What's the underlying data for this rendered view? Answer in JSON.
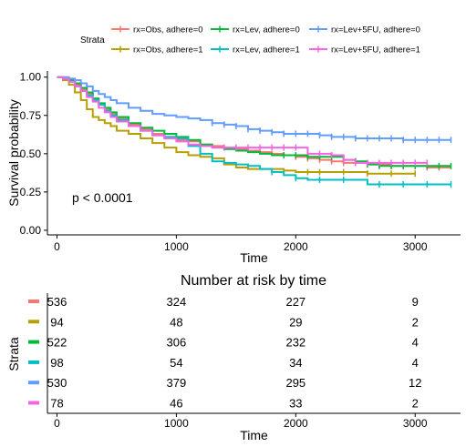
{
  "chart_data": [
    {
      "type": "line",
      "subtype": "kaplan-meier",
      "title": "",
      "xlabel": "Time",
      "ylabel": "Survival probability",
      "xlim": [
        -80,
        3380
      ],
      "ylim": [
        -0.03,
        1.04
      ],
      "xticks": [
        "0",
        "1000",
        "2000",
        "3000"
      ],
      "xtick_values": [
        0,
        1000,
        2000,
        3000
      ],
      "yticks": [
        "0.00",
        "0.25",
        "0.50",
        "0.75",
        "1.00"
      ],
      "ytick_values": [
        0,
        0.25,
        0.5,
        0.75,
        1.0
      ],
      "grid": false,
      "annotation": "p < 0.0001",
      "legend": {
        "title": "Strata",
        "position": "top",
        "entries": [
          "rx=Obs, adhere=0",
          "rx=Lev, adhere=0",
          "rx=Lev+5FU, adhere=0",
          "rx=Obs, adhere=1",
          "rx=Lev, adhere=1",
          "rx=Lev+5FU, adhere=1"
        ]
      },
      "series": [
        {
          "name": "rx=Obs, adhere=0",
          "color": "#F8766D",
          "x": [
            0,
            50,
            100,
            150,
            200,
            250,
            300,
            350,
            400,
            450,
            500,
            600,
            700,
            800,
            900,
            1000,
            1100,
            1200,
            1300,
            1400,
            1500,
            1600,
            1700,
            1800,
            1900,
            2000,
            2100,
            2200,
            2300,
            2400,
            2500,
            2600,
            2700,
            2800,
            2900,
            3000,
            3100,
            3200,
            3300
          ],
          "y": [
            1.0,
            0.99,
            0.97,
            0.95,
            0.92,
            0.89,
            0.86,
            0.82,
            0.79,
            0.76,
            0.73,
            0.69,
            0.66,
            0.63,
            0.61,
            0.59,
            0.58,
            0.56,
            0.55,
            0.54,
            0.53,
            0.52,
            0.51,
            0.5,
            0.49,
            0.48,
            0.47,
            0.46,
            0.45,
            0.44,
            0.44,
            0.43,
            0.43,
            0.42,
            0.42,
            0.42,
            0.41,
            0.41,
            0.41
          ],
          "censor_x": [
            2000,
            2100,
            2200,
            2300,
            2400,
            2500,
            2600,
            2700,
            2800,
            2900,
            3000,
            3100,
            3200
          ]
        },
        {
          "name": "rx=Obs, adhere=1",
          "color": "#B79F00",
          "x": [
            0,
            50,
            100,
            150,
            200,
            250,
            300,
            350,
            400,
            450,
            500,
            600,
            700,
            800,
            900,
            1000,
            1100,
            1200,
            1300,
            1400,
            1500,
            1600,
            1700,
            1800,
            1900,
            2000,
            2200,
            2400,
            2600,
            2800,
            3000
          ],
          "y": [
            1.0,
            0.98,
            0.95,
            0.9,
            0.85,
            0.79,
            0.74,
            0.72,
            0.7,
            0.68,
            0.65,
            0.63,
            0.6,
            0.57,
            0.54,
            0.51,
            0.49,
            0.48,
            0.47,
            0.43,
            0.41,
            0.4,
            0.4,
            0.4,
            0.39,
            0.38,
            0.38,
            0.38,
            0.37,
            0.37,
            0.37
          ],
          "censor_x": [
            2100,
            2200,
            2400,
            2600,
            2800,
            3000
          ]
        },
        {
          "name": "rx=Lev, adhere=0",
          "color": "#00BA38",
          "x": [
            0,
            50,
            100,
            150,
            200,
            250,
            300,
            350,
            400,
            450,
            500,
            600,
            700,
            800,
            900,
            1000,
            1100,
            1200,
            1300,
            1400,
            1500,
            1600,
            1700,
            1800,
            1900,
            2000,
            2100,
            2200,
            2300,
            2400,
            2500,
            2600,
            2700,
            2800,
            2900,
            3000,
            3100,
            3200,
            3300
          ],
          "y": [
            1.0,
            0.99,
            0.98,
            0.96,
            0.93,
            0.9,
            0.86,
            0.83,
            0.8,
            0.77,
            0.74,
            0.7,
            0.67,
            0.65,
            0.63,
            0.61,
            0.59,
            0.56,
            0.54,
            0.53,
            0.52,
            0.51,
            0.5,
            0.49,
            0.49,
            0.49,
            0.48,
            0.48,
            0.48,
            0.46,
            0.45,
            0.43,
            0.42,
            0.42,
            0.42,
            0.42,
            0.42,
            0.42,
            0.42
          ],
          "censor_x": [
            1900,
            2000,
            2100,
            2200,
            2300,
            2400,
            2500,
            2600,
            2700,
            2800,
            2900,
            3000,
            3100,
            3200,
            3300
          ]
        },
        {
          "name": "rx=Lev, adhere=1",
          "color": "#00BFC4",
          "x": [
            0,
            50,
            100,
            150,
            200,
            250,
            300,
            350,
            400,
            450,
            500,
            600,
            700,
            800,
            900,
            1000,
            1100,
            1200,
            1300,
            1400,
            1500,
            1600,
            1700,
            1800,
            1900,
            2000,
            2100,
            2200,
            2300,
            2400,
            2500,
            2600,
            2700,
            2800,
            2900,
            3000,
            3100,
            3200,
            3300
          ],
          "y": [
            1.0,
            0.99,
            0.97,
            0.94,
            0.91,
            0.88,
            0.85,
            0.82,
            0.78,
            0.75,
            0.72,
            0.68,
            0.65,
            0.62,
            0.61,
            0.6,
            0.55,
            0.5,
            0.45,
            0.44,
            0.43,
            0.42,
            0.4,
            0.38,
            0.36,
            0.34,
            0.33,
            0.33,
            0.33,
            0.33,
            0.33,
            0.3,
            0.3,
            0.3,
            0.3,
            0.3,
            0.3,
            0.3,
            0.3
          ],
          "censor_x": [
            1800,
            2000,
            2200,
            2400,
            2700,
            2900,
            3100,
            3300
          ]
        },
        {
          "name": "rx=Lev+5FU, adhere=0",
          "color": "#619CFF",
          "x": [
            0,
            50,
            100,
            150,
            200,
            250,
            300,
            350,
            400,
            450,
            500,
            600,
            700,
            800,
            900,
            1000,
            1100,
            1200,
            1300,
            1400,
            1500,
            1600,
            1700,
            1800,
            1900,
            2000,
            2100,
            2200,
            2300,
            2400,
            2500,
            2600,
            2700,
            2800,
            2900,
            3000,
            3100,
            3200,
            3300
          ],
          "y": [
            1.0,
            1.0,
            0.99,
            0.98,
            0.96,
            0.94,
            0.91,
            0.89,
            0.87,
            0.85,
            0.83,
            0.8,
            0.78,
            0.76,
            0.75,
            0.74,
            0.73,
            0.72,
            0.7,
            0.69,
            0.68,
            0.66,
            0.65,
            0.64,
            0.63,
            0.63,
            0.63,
            0.62,
            0.61,
            0.61,
            0.6,
            0.6,
            0.6,
            0.6,
            0.59,
            0.59,
            0.59,
            0.59,
            0.59
          ],
          "censor_x": [
            1300,
            1400,
            1500,
            1600,
            1700,
            1800,
            1900,
            2000,
            2100,
            2200,
            2300,
            2400,
            2500,
            2600,
            2700,
            2800,
            2900,
            3000,
            3100,
            3200,
            3300
          ]
        },
        {
          "name": "rx=Lev+5FU, adhere=1",
          "color": "#F564E3",
          "x": [
            0,
            50,
            100,
            150,
            200,
            250,
            300,
            350,
            400,
            450,
            500,
            600,
            700,
            800,
            900,
            1000,
            1100,
            1200,
            1300,
            1400,
            1500,
            1600,
            1700,
            1800,
            1900,
            2000,
            2100,
            2200,
            2300,
            2400,
            2500,
            2600,
            2700,
            2800,
            2900,
            3000,
            3100
          ],
          "y": [
            1.0,
            0.99,
            0.97,
            0.94,
            0.91,
            0.87,
            0.84,
            0.8,
            0.77,
            0.74,
            0.71,
            0.68,
            0.65,
            0.62,
            0.6,
            0.58,
            0.56,
            0.55,
            0.54,
            0.54,
            0.54,
            0.54,
            0.54,
            0.54,
            0.54,
            0.54,
            0.5,
            0.5,
            0.49,
            0.46,
            0.44,
            0.44,
            0.44,
            0.44,
            0.44,
            0.44,
            0.44
          ],
          "censor_x": [
            1400,
            1500,
            1600,
            1700,
            1800,
            1900,
            2000,
            2200,
            2300,
            2400,
            2500,
            2600,
            2700,
            2800,
            2900,
            3000,
            3100
          ]
        }
      ]
    },
    {
      "type": "table",
      "title": "Number at risk by time",
      "xlabel": "Time",
      "ylabel": "Strata",
      "xlim": [
        -80,
        3380
      ],
      "xticks": [
        "0",
        "1000",
        "2000",
        "3000"
      ],
      "xtick_values": [
        0,
        1000,
        2000,
        3000
      ],
      "rows": [
        {
          "color": "#F8766D",
          "values": [
            "536",
            "324",
            "227",
            "9"
          ]
        },
        {
          "color": "#B79F00",
          "values": [
            "94",
            "48",
            "29",
            "2"
          ]
        },
        {
          "color": "#00BA38",
          "values": [
            "522",
            "306",
            "232",
            "4"
          ]
        },
        {
          "color": "#00BFC4",
          "values": [
            "98",
            "54",
            "34",
            "4"
          ]
        },
        {
          "color": "#619CFF",
          "values": [
            "530",
            "379",
            "295",
            "12"
          ]
        },
        {
          "color": "#F564E3",
          "values": [
            "78",
            "46",
            "33",
            "2"
          ]
        }
      ]
    }
  ]
}
